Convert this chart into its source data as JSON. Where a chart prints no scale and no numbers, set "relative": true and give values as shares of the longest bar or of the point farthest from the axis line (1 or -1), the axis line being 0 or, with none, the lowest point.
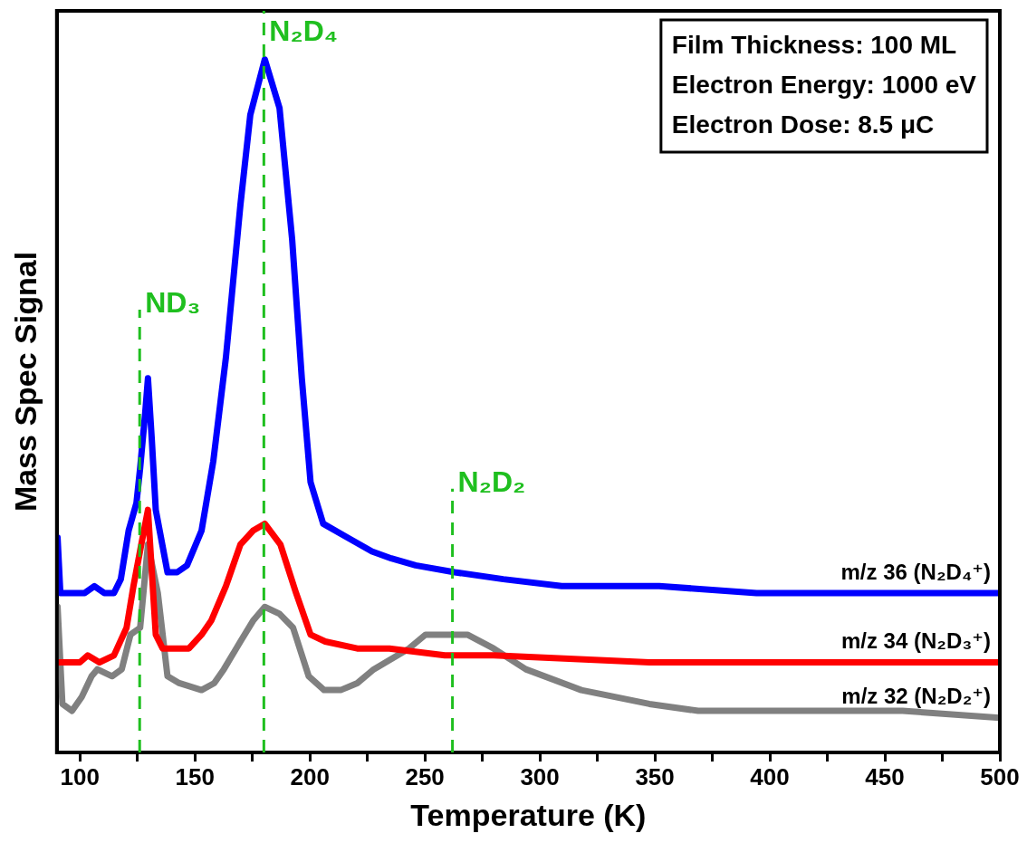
{
  "chart_data": {
    "type": "line",
    "xlabel": "Temperature (K)",
    "ylabel": "Mass Spec Signal",
    "relative": true,
    "legend": false,
    "xlim": [
      90,
      500
    ],
    "xticks": [
      100,
      {
        "value": 125,
        "label": null
      },
      150,
      {
        "value": 175,
        "label": null
      },
      200,
      {
        "value": 225,
        "label": null
      },
      250,
      {
        "value": 275,
        "label": null
      },
      300,
      {
        "value": 325,
        "label": null
      },
      350,
      {
        "value": 375,
        "label": null
      },
      400,
      {
        "value": 425,
        "label": null
      },
      450,
      {
        "value": 475,
        "label": null
      },
      500
    ],
    "series": [
      {
        "name": "m/z 36 (N₂D₄⁺)",
        "color": "#0000ff",
        "x": [
          90.3,
          91.5,
          96.6,
          102.1,
          106.3,
          110.6,
          114.8,
          117.8,
          121.2,
          124.6,
          126.2,
          128.4,
          129.6,
          131.3,
          133.0,
          138.1,
          142.3,
          146.6,
          152.9,
          158.0,
          163.5,
          169.8,
          174.1,
          180.4,
          186.8,
          192.3,
          196.5,
          200.3,
          205.8,
          216.4,
          227.0,
          235.4,
          246.0,
          263.0,
          284.1,
          309.5,
          351.9,
          394.2,
          457.7,
          500
        ],
        "values": [
          0.31,
          0.23,
          0.23,
          0.23,
          0.24,
          0.23,
          0.23,
          0.25,
          0.32,
          0.36,
          0.41,
          0.49,
          0.54,
          0.45,
          0.35,
          0.26,
          0.26,
          0.27,
          0.32,
          0.42,
          0.57,
          0.79,
          0.92,
          1,
          0.93,
          0.74,
          0.54,
          0.39,
          0.33,
          0.31,
          0.29,
          0.28,
          0.27,
          0.26,
          0.25,
          0.24,
          0.24,
          0.23,
          0.23,
          0.23
        ]
      },
      {
        "name": "m/z 34 (N₂D₃⁺)",
        "color": "#ff0000",
        "x": [
          90.7,
          100,
          103.4,
          108.5,
          114.8,
          120.3,
          123.3,
          126.7,
          129.6,
          133,
          136,
          142.3,
          147.4,
          152.9,
          157.1,
          163.5,
          169.8,
          175.3,
          180.4,
          187.2,
          194,
          200.3,
          206.7,
          220.6,
          234.6,
          258.7,
          279.9,
          347.6,
          415.3,
          500
        ],
        "values": [
          0.13,
          0.13,
          0.14,
          0.13,
          0.14,
          0.18,
          0.24,
          0.3,
          0.35,
          0.17,
          0.15,
          0.15,
          0.15,
          0.17,
          0.19,
          0.24,
          0.3,
          0.32,
          0.33,
          0.3,
          0.23,
          0.17,
          0.16,
          0.15,
          0.15,
          0.14,
          0.14,
          0.13,
          0.13,
          0.13
        ]
      },
      {
        "name": "m/z 32 (N₂D₂⁺)",
        "color": "#808080",
        "x": [
          90.3,
          92.4,
          96.6,
          100.8,
          105.1,
          107.6,
          114,
          118.2,
          122,
          126.2,
          129.6,
          133.9,
          138.1,
          143.2,
          152.9,
          158.4,
          162.6,
          169.8,
          175.3,
          180.4,
          186.8,
          192.7,
          199.5,
          206.2,
          213.4,
          220.6,
          227.8,
          243.1,
          250.3,
          258.7,
          268.5,
          279.9,
          293.9,
          318,
          347.6,
          368.8,
          457.7,
          500
        ],
        "values": [
          0.21,
          0.07,
          0.06,
          0.08,
          0.11,
          0.12,
          0.11,
          0.12,
          0.17,
          0.18,
          0.3,
          0.23,
          0.11,
          0.1,
          0.09,
          0.1,
          0.12,
          0.16,
          0.19,
          0.21,
          0.2,
          0.18,
          0.11,
          0.09,
          0.09,
          0.1,
          0.12,
          0.15,
          0.17,
          0.17,
          0.17,
          0.15,
          0.12,
          0.09,
          0.07,
          0.06,
          0.06,
          0.05
        ]
      }
    ],
    "ref_lines": [
      {
        "axis": "x",
        "value": 126,
        "label": "ND₃",
        "color": "#1fbf1f",
        "line_style": "dashed"
      },
      {
        "axis": "x",
        "value": 180,
        "label": "N₂D₄",
        "color": "#1fbf1f",
        "line_style": "dashed"
      },
      {
        "axis": "x",
        "value": 262,
        "label": "N₂D₂",
        "color": "#1fbf1f",
        "line_style": "dashed"
      }
    ],
    "annotations": [
      "Film Thickness: 100 ML",
      "Electron Energy: 1000 eV",
      "Electron Dose: 8.5 μC"
    ]
  }
}
